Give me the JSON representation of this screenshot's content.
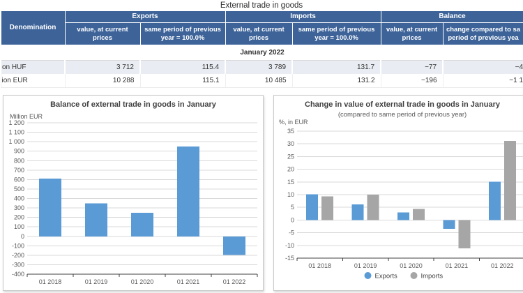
{
  "page_title": "External trade in goods",
  "table": {
    "denomination_header": "Denomination",
    "groups": [
      "Exports",
      "Imports",
      "Balance"
    ],
    "sub_headers": [
      "value, at current prices",
      "same period of previous\nyear = 100.0%",
      "value, at current\nprices",
      "same period of previous\nyear = 100.0%",
      "value, at current\nprices",
      "change compared to sa\nperiod of previous yea"
    ],
    "period": "January 2022",
    "rows": [
      [
        "on HUF",
        "3 712",
        "115.4",
        "3 789",
        "131.7",
        "−77",
        "−4"
      ],
      [
        "ion EUR",
        "10 288",
        "115.1",
        "10 485",
        "131.2",
        "−196",
        "−1 1"
      ]
    ]
  },
  "chart_data": [
    {
      "type": "bar",
      "title": "Balance of external trade in goods in January",
      "ylabel": "Million EUR",
      "categories": [
        "01 2018",
        "01 2019",
        "01 2020",
        "01 2021",
        "01 2022"
      ],
      "series": [
        {
          "name": "Balance",
          "color": "#5b9bd5",
          "values": [
            610,
            350,
            250,
            950,
            -196
          ]
        }
      ],
      "ylim": [
        -400,
        1200
      ],
      "ytick_step": 100,
      "grid": true,
      "legend": false
    },
    {
      "type": "bar",
      "title": "Change in value of external trade in goods in January",
      "subtitle": "(compared to same period of previous year)",
      "ylabel": "%, in EUR",
      "categories": [
        "01 2018",
        "01 2019",
        "01 2020",
        "01 2021",
        "01 2022"
      ],
      "series": [
        {
          "name": "Exports",
          "color": "#5b9bd5",
          "values": [
            10.2,
            6.1,
            3.0,
            -3.5,
            15.1
          ]
        },
        {
          "name": "Imports",
          "color": "#a6a6a6",
          "values": [
            9.3,
            10.0,
            4.3,
            -11.1,
            31.2
          ]
        }
      ],
      "ylim": [
        -15,
        35
      ],
      "ytick_step": 5,
      "grid": true,
      "legend": true,
      "legend_position": "bottom"
    }
  ],
  "colors": {
    "header_blue": "#3d6399",
    "row_alt": "#e9ecf2",
    "bar_blue": "#5b9bd5",
    "bar_gray": "#a6a6a6",
    "gridline": "#d9d9d9",
    "axis": "#404040",
    "tick_text": "#595959"
  }
}
